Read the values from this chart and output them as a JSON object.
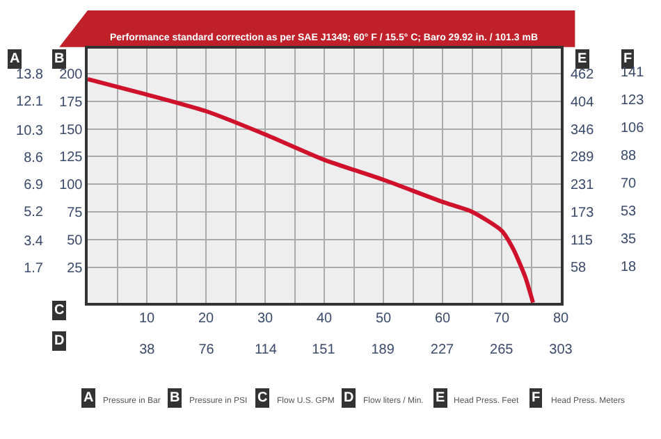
{
  "chart_data": {
    "type": "line",
    "title": "Performance standard correction as per SAE J1349; 60° F / 15.5° C; Baro 29.92 in. / 101.3 mB",
    "xlabel": "C",
    "x2label": "D",
    "ylabel": "B",
    "y2label": "A",
    "y3label": "E",
    "x": [
      0,
      10,
      20,
      30,
      40,
      50,
      60,
      65,
      70,
      72,
      74,
      75.3
    ],
    "series": [
      {
        "color": "#d0112b",
        "values": [
          195,
          181,
          166,
          145,
          122,
          104,
          84,
          75,
          58,
          41,
          16,
          -7
        ]
      }
    ],
    "xlim": [
      0,
      80
    ],
    "xticks": [
      {
        "value": 5,
        "label": null
      },
      10,
      {
        "value": 15,
        "label": null
      },
      20,
      {
        "value": 25,
        "label": null
      },
      30,
      {
        "value": 35,
        "label": null
      },
      40,
      {
        "value": 45,
        "label": null
      },
      50,
      {
        "value": 55,
        "label": null
      },
      60,
      {
        "value": 65,
        "label": null
      },
      70,
      {
        "value": 75,
        "label": null
      },
      80
    ],
    "x2lim": [
      0,
      303
    ],
    "x2ticks": [
      38,
      76,
      114,
      151,
      189,
      227,
      265,
      303
    ],
    "ylim": [
      -7.5,
      222.5
    ],
    "yticks": [
      25,
      50,
      75,
      100,
      125,
      150,
      175,
      200
    ],
    "y2lim": [
      -0.52,
      15.35
    ],
    "y2ticks": [
      1.7,
      3.4,
      5.2,
      6.9,
      8.6,
      10.3,
      12.1,
      13.8
    ],
    "y3lim": [
      -17.3,
      514
    ],
    "y3ticks": [
      58,
      115,
      173,
      231,
      289,
      346,
      404,
      462
    ],
    "grid": true,
    "marker": "none",
    "line_style": "solid",
    "annotations": [
      "Pressure in Bar",
      "Pressure in PSI",
      "Flow U.S. GPM",
      "Flow liters / Min.",
      "Head Press. Feet",
      "Head Press. Meters",
      "F",
      "141",
      "123",
      "106",
      "88",
      "70",
      "53",
      "35",
      "18"
    ]
  }
}
